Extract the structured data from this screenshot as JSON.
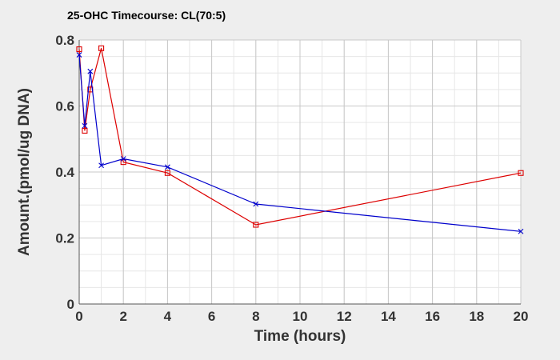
{
  "chart_data": {
    "type": "line",
    "title": "25-OHC Timecourse: CL(70:5)",
    "xlabel": "Time (hours)",
    "ylabel": "Amount.(pmol/ug DNA)",
    "xlim": [
      0,
      20
    ],
    "ylim": [
      0,
      0.8
    ],
    "x_ticks": [
      0,
      2,
      4,
      6,
      8,
      10,
      12,
      14,
      16,
      18,
      20
    ],
    "y_ticks": [
      0,
      0.2,
      0.4,
      0.6,
      0.8
    ],
    "x_tick_labels": [
      "0",
      "2",
      "4",
      "6",
      "8",
      "10",
      "12",
      "14",
      "16",
      "18",
      "20"
    ],
    "y_tick_labels": [
      "0",
      "0.2",
      "0.4",
      "0.6",
      "0.8"
    ],
    "grid": true,
    "series": [
      {
        "color": "#dd0000",
        "marker": "square",
        "x": [
          0,
          0.25,
          0.5,
          1,
          2,
          4,
          8,
          20
        ],
        "y": [
          0.772,
          0.525,
          0.65,
          0.775,
          0.43,
          0.397,
          0.24,
          0.397
        ]
      },
      {
        "color": "#0000cc",
        "marker": "x",
        "x": [
          0,
          0.25,
          0.5,
          1,
          2,
          4,
          8,
          20
        ],
        "y": [
          0.755,
          0.54,
          0.705,
          0.42,
          0.44,
          0.415,
          0.303,
          0.22
        ]
      }
    ]
  }
}
